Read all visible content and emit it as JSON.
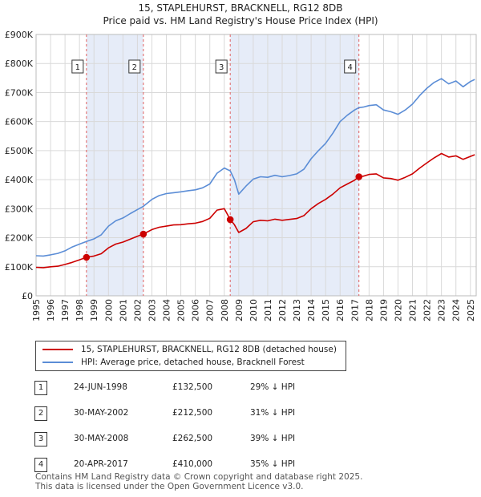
{
  "chart_data": {
    "type": "line",
    "title": "15, STAPLEHURST, BRACKNELL, RG12 8DB",
    "subtitle": "Price paid vs. HM Land Registry's House Price Index (HPI)",
    "xlim": [
      1995,
      2025.4
    ],
    "ylim": [
      0,
      900000
    ],
    "y_ticks": [
      0,
      100000,
      200000,
      300000,
      400000,
      500000,
      600000,
      700000,
      800000,
      900000
    ],
    "y_tick_labels": [
      "£0",
      "£100K",
      "£200K",
      "£300K",
      "£400K",
      "£500K",
      "£600K",
      "£700K",
      "£800K",
      "£900K"
    ],
    "x_ticks": [
      "1995",
      "1996",
      "1997",
      "1998",
      "1999",
      "2000",
      "2001",
      "2002",
      "2003",
      "2004",
      "2005",
      "2006",
      "2007",
      "2008",
      "2009",
      "2010",
      "2011",
      "2012",
      "2013",
      "2014",
      "2015",
      "2016",
      "2017",
      "2018",
      "2019",
      "2020",
      "2021",
      "2022",
      "2023",
      "2024",
      "2025"
    ],
    "series": [
      {
        "name": "15, STAPLEHURST, BRACKNELL, RG12 8DB (detached house)",
        "color": "#cc0000",
        "x": [
          1995.0,
          1995.5,
          1996.0,
          1996.5,
          1997.0,
          1997.5,
          1998.0,
          1998.48,
          1999.0,
          1999.5,
          2000.0,
          2000.5,
          2001.0,
          2001.5,
          2002.0,
          2002.41,
          2003.0,
          2003.5,
          2004.0,
          2004.5,
          2005.0,
          2005.5,
          2006.0,
          2006.5,
          2007.0,
          2007.5,
          2008.0,
          2008.41,
          2008.7,
          2009.0,
          2009.5,
          2010.0,
          2010.5,
          2011.0,
          2011.5,
          2012.0,
          2012.5,
          2013.0,
          2013.5,
          2014.0,
          2014.5,
          2015.0,
          2015.5,
          2016.0,
          2016.5,
          2017.0,
          2017.3,
          2017.6,
          2018.0,
          2018.5,
          2019.0,
          2019.5,
          2020.0,
          2020.5,
          2021.0,
          2021.5,
          2022.0,
          2022.5,
          2023.0,
          2023.5,
          2024.0,
          2024.5,
          2025.0,
          2025.3
        ],
        "values": [
          98000,
          97000,
          100000,
          102000,
          108000,
          115000,
          124000,
          132500,
          137000,
          145000,
          165000,
          178000,
          185000,
          195000,
          205000,
          212500,
          228000,
          236000,
          240000,
          244000,
          245000,
          248000,
          250000,
          256000,
          267000,
          295000,
          300000,
          262500,
          245000,
          218000,
          232000,
          255000,
          260000,
          258000,
          264000,
          260000,
          263000,
          266000,
          276000,
          300000,
          318000,
          332000,
          350000,
          372000,
          385000,
          398000,
          410000,
          412000,
          418000,
          420000,
          406000,
          404000,
          398000,
          408000,
          420000,
          440000,
          458000,
          475000,
          490000,
          478000,
          482000,
          470000,
          480000,
          486000
        ]
      },
      {
        "name": "HPI: Average price, detached house, Bracknell Forest",
        "color": "#5b8dd6",
        "x": [
          1995.0,
          1995.5,
          1996.0,
          1996.5,
          1997.0,
          1997.5,
          1998.0,
          1998.48,
          1999.0,
          1999.5,
          2000.0,
          2000.5,
          2001.0,
          2001.5,
          2002.0,
          2002.41,
          2003.0,
          2003.5,
          2004.0,
          2004.5,
          2005.0,
          2005.5,
          2006.0,
          2006.5,
          2007.0,
          2007.5,
          2008.0,
          2008.41,
          2008.7,
          2009.0,
          2009.5,
          2010.0,
          2010.5,
          2011.0,
          2011.5,
          2012.0,
          2012.5,
          2013.0,
          2013.5,
          2014.0,
          2014.5,
          2015.0,
          2015.5,
          2016.0,
          2016.5,
          2017.0,
          2017.3,
          2017.6,
          2018.0,
          2018.5,
          2019.0,
          2019.5,
          2020.0,
          2020.5,
          2021.0,
          2021.5,
          2022.0,
          2022.5,
          2023.0,
          2023.5,
          2024.0,
          2024.5,
          2025.0,
          2025.3
        ],
        "values": [
          138000,
          137000,
          141000,
          146000,
          155000,
          168000,
          178000,
          187000,
          196000,
          210000,
          240000,
          258000,
          268000,
          283000,
          297000,
          308000,
          332000,
          345000,
          352000,
          355000,
          358000,
          362000,
          365000,
          372000,
          385000,
          422000,
          440000,
          430000,
          400000,
          350000,
          378000,
          402000,
          410000,
          408000,
          415000,
          410000,
          414000,
          420000,
          436000,
          472000,
          500000,
          525000,
          560000,
          600000,
          622000,
          640000,
          648000,
          650000,
          655000,
          658000,
          640000,
          634000,
          625000,
          640000,
          660000,
          690000,
          715000,
          735000,
          748000,
          730000,
          740000,
          720000,
          738000,
          745000
        ]
      }
    ],
    "sales": [
      {
        "label": "1",
        "x": 1998.48,
        "value": 132500,
        "date": "24-JUN-1998",
        "price": "£132,500",
        "hpi": "29% ↓ HPI"
      },
      {
        "label": "2",
        "x": 2002.41,
        "value": 212500,
        "date": "30-MAY-2002",
        "price": "£212,500",
        "hpi": "31% ↓ HPI"
      },
      {
        "label": "3",
        "x": 2008.41,
        "value": 262500,
        "date": "30-MAY-2008",
        "price": "£262,500",
        "hpi": "39% ↓ HPI"
      },
      {
        "label": "4",
        "x": 2017.3,
        "value": 410000,
        "date": "20-APR-2017",
        "price": "£410,000",
        "hpi": "35% ↓ HPI"
      }
    ],
    "shaded_ranges": [
      [
        1998.48,
        2002.41
      ],
      [
        2008.41,
        2017.3
      ]
    ],
    "grid": true
  },
  "legend": {
    "property_label": "15, STAPLEHURST, BRACKNELL, RG12 8DB (detached house)",
    "hpi_label": "HPI: Average price, detached house, Bracknell Forest",
    "property_color": "#cc0000",
    "hpi_color": "#5b8dd6"
  },
  "footer": {
    "line1": "Contains HM Land Registry data © Crown copyright and database right 2025.",
    "line2": "This data is licensed under the Open Government Licence v3.0."
  }
}
